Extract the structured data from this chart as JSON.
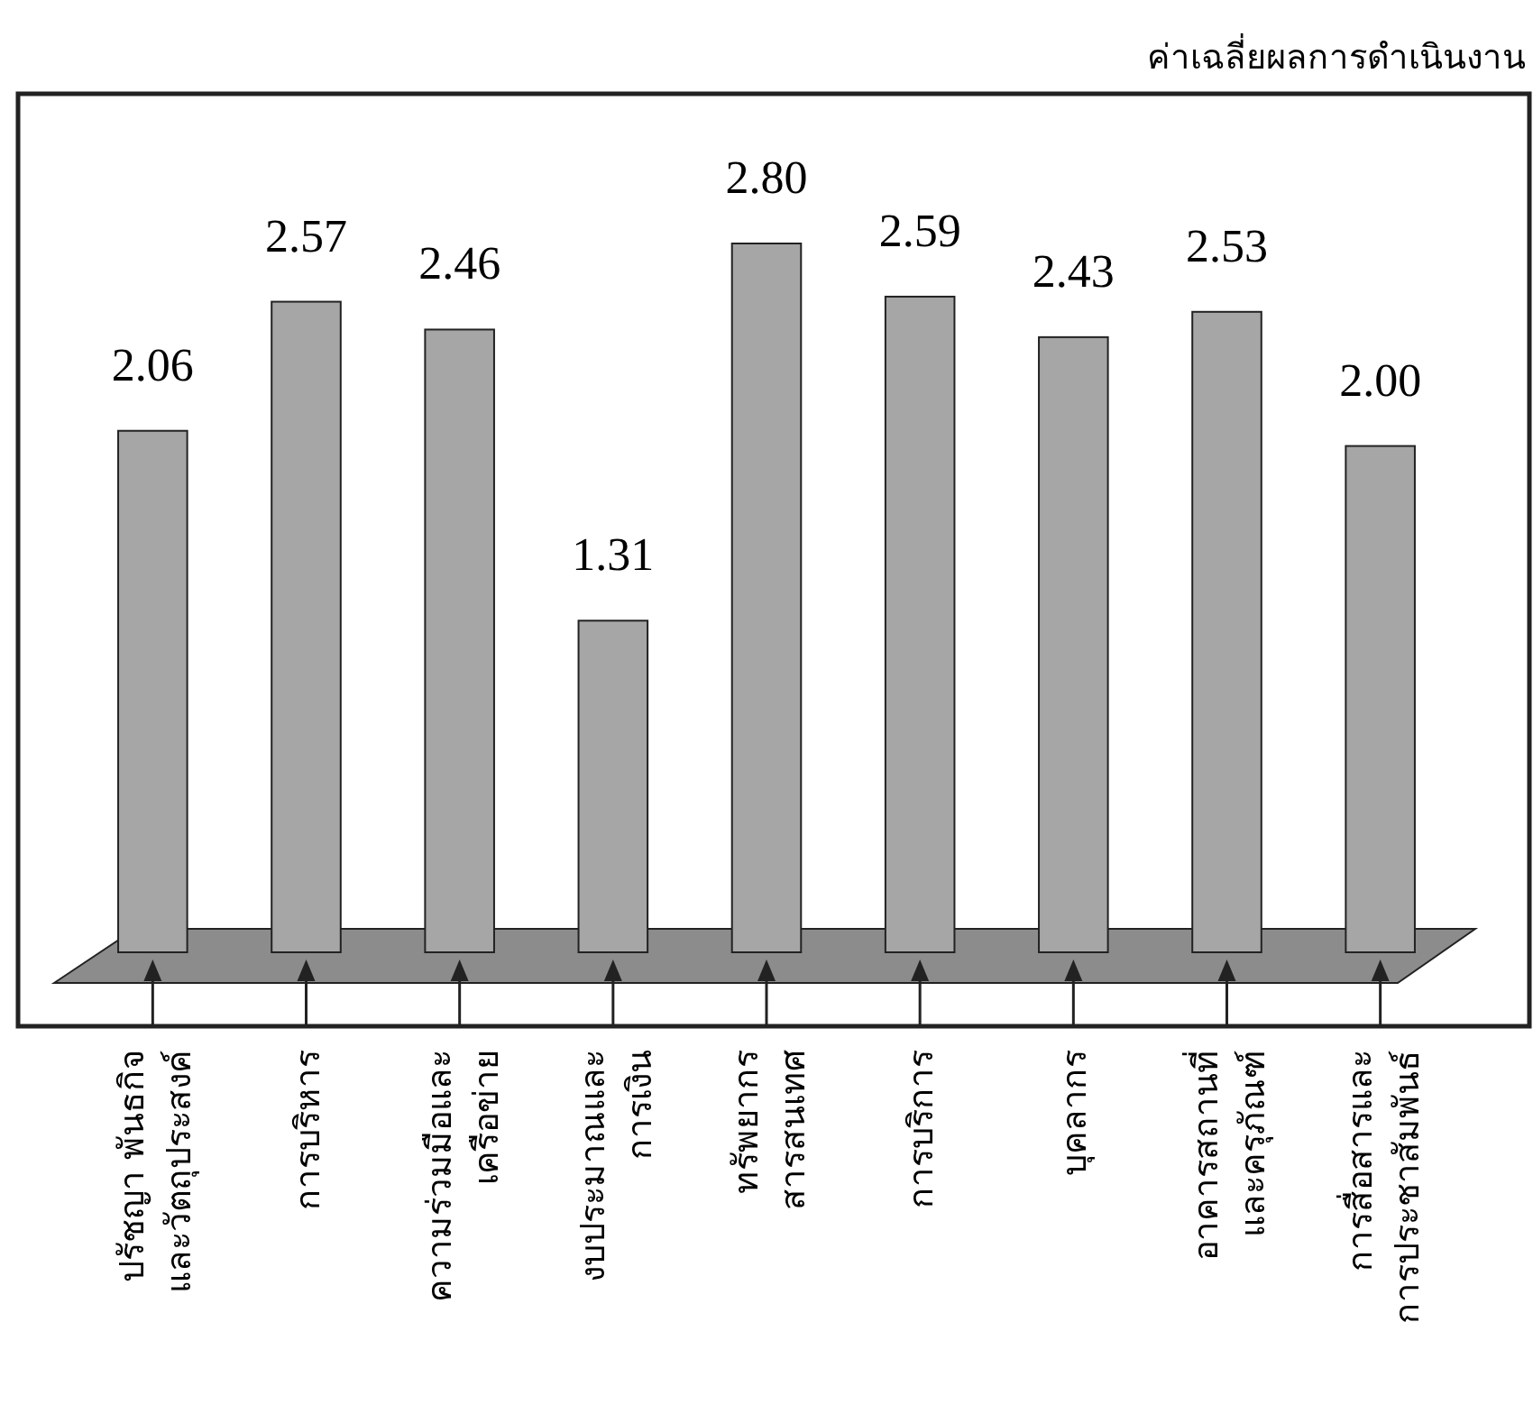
{
  "chart_data": {
    "type": "bar",
    "title": "ค่าเฉลี่ยผลการดำเนินงาน",
    "categories": [
      "ปรัชญา พันธกิจ\nและวัตถุประสงค์",
      "การบริหาร",
      "ความร่วมมือและ\nเครือข่าย",
      "งบประมาณและ\nการเงิน",
      "ทรัพยากร\nสารสนเทศ",
      "การบริการ",
      "บุคลากร",
      "อาคารสถานที่\nและครุภัณฑ์",
      "การสื่อสารและ\nการประชาสัมพันธ์"
    ],
    "values": [
      2.06,
      2.57,
      2.46,
      1.31,
      2.8,
      2.59,
      2.43,
      2.53,
      2.0
    ],
    "value_labels": [
      "2.06",
      "2.57",
      "2.46",
      "1.31",
      "2.80",
      "2.59",
      "2.43",
      "2.53",
      "2.00"
    ],
    "color": "#a6a6a6"
  }
}
